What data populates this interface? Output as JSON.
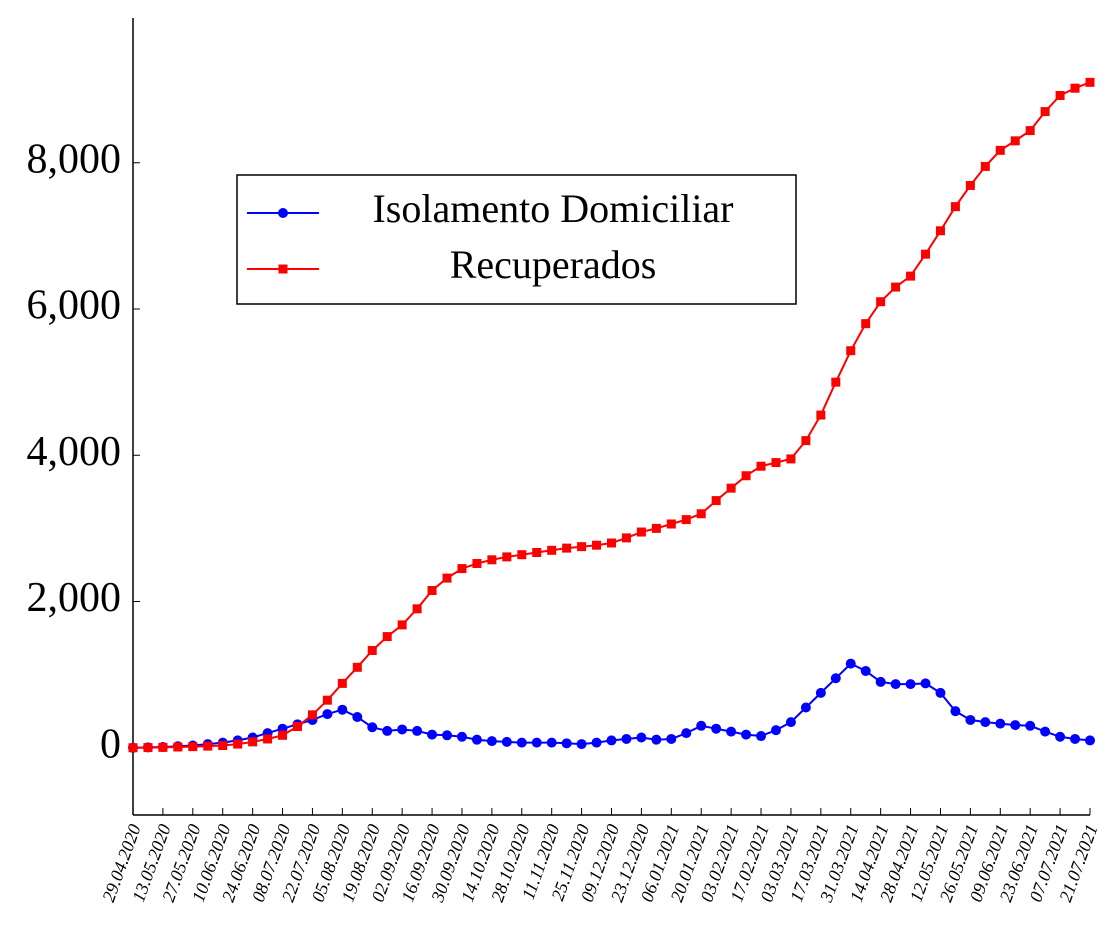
{
  "chart_data": {
    "type": "line",
    "x": [
      "29.04.2020",
      "06.05.2020",
      "13.05.2020",
      "20.05.2020",
      "27.05.2020",
      "03.06.2020",
      "10.06.2020",
      "17.06.2020",
      "24.06.2020",
      "01.07.2020",
      "08.07.2020",
      "15.07.2020",
      "22.07.2020",
      "29.07.2020",
      "05.08.2020",
      "12.08.2020",
      "19.08.2020",
      "26.08.2020",
      "02.09.2020",
      "09.09.2020",
      "16.09.2020",
      "23.09.2020",
      "30.09.2020",
      "07.10.2020",
      "14.10.2020",
      "21.10.2020",
      "28.10.2020",
      "04.11.2020",
      "11.11.2020",
      "18.11.2020",
      "25.11.2020",
      "02.12.2020",
      "09.12.2020",
      "16.12.2020",
      "23.12.2020",
      "30.12.2020",
      "06.01.2021",
      "13.01.2021",
      "20.01.2021",
      "27.01.2021",
      "03.02.2021",
      "10.02.2021",
      "17.02.2021",
      "24.02.2021",
      "03.03.2021",
      "10.03.2021",
      "17.03.2021",
      "24.03.2021",
      "31.03.2021",
      "07.04.2021",
      "14.04.2021",
      "21.04.2021",
      "28.04.2021",
      "05.05.2021",
      "12.05.2021",
      "19.05.2021",
      "26.05.2021",
      "02.06.2021",
      "09.06.2021",
      "16.06.2021",
      "23.06.2021",
      "30.06.2021",
      "07.07.2021",
      "14.07.2021",
      "21.07.2021"
    ],
    "series": [
      {
        "name": "Isolamento Domiciliar",
        "color": "#0000ff",
        "marker": "circle",
        "values": [
          0,
          5,
          10,
          20,
          30,
          50,
          70,
          100,
          140,
          200,
          260,
          320,
          380,
          460,
          520,
          420,
          280,
          230,
          250,
          230,
          180,
          170,
          150,
          110,
          90,
          80,
          70,
          70,
          70,
          60,
          50,
          70,
          100,
          120,
          140,
          110,
          120,
          200,
          300,
          260,
          220,
          180,
          160,
          240,
          350,
          550,
          750,
          950,
          1150,
          1050,
          900,
          870,
          870,
          880,
          750,
          500,
          380,
          350,
          330,
          310,
          300,
          220,
          150,
          120,
          100
        ]
      },
      {
        "name": "Recuperados",
        "color": "#ff0000",
        "marker": "square",
        "values": [
          0,
          2,
          5,
          10,
          15,
          22,
          30,
          50,
          80,
          120,
          170,
          290,
          450,
          650,
          880,
          1100,
          1330,
          1520,
          1680,
          1900,
          2150,
          2320,
          2450,
          2520,
          2570,
          2610,
          2640,
          2670,
          2700,
          2730,
          2750,
          2770,
          2800,
          2870,
          2950,
          3000,
          3060,
          3120,
          3200,
          3380,
          3550,
          3720,
          3850,
          3900,
          3950,
          4200,
          4550,
          5000,
          5430,
          5800,
          6100,
          6300,
          6450,
          6750,
          7070,
          7400,
          7690,
          7950,
          8170,
          8300,
          8440,
          8700,
          8920,
          9020,
          9100
        ]
      }
    ],
    "xlim": [
      "29.04.2020",
      "21.07.2021"
    ],
    "xticks": [
      "29.04.2020",
      "13.05.2020",
      "27.05.2020",
      "10.06.2020",
      "24.06.2020",
      "08.07.2020",
      "22.07.2020",
      "05.08.2020",
      "19.08.2020",
      "02.09.2020",
      "16.09.2020",
      "30.09.2020",
      "14.10.2020",
      "28.10.2020",
      "11.11.2020",
      "25.11.2020",
      "09.12.2020",
      "23.12.2020",
      "06.01.2021",
      "20.01.2021",
      "03.02.2021",
      "17.02.2021",
      "03.03.2021",
      "17.03.2021",
      "31.03.2021",
      "14.04.2021",
      "28.04.2021",
      "12.05.2021",
      "26.05.2021",
      "09.06.2021",
      "23.06.2021",
      "07.07.2021",
      "21.07.2021"
    ],
    "ylim": [
      -920,
      9980
    ],
    "yticks": [
      0,
      {
        "value": 2000,
        "label": "2,000"
      },
      {
        "value": 4000,
        "label": "4,000"
      },
      {
        "value": 6000,
        "label": "6,000"
      },
      {
        "value": 8000,
        "label": "8,000"
      }
    ],
    "legend": "upper left"
  }
}
